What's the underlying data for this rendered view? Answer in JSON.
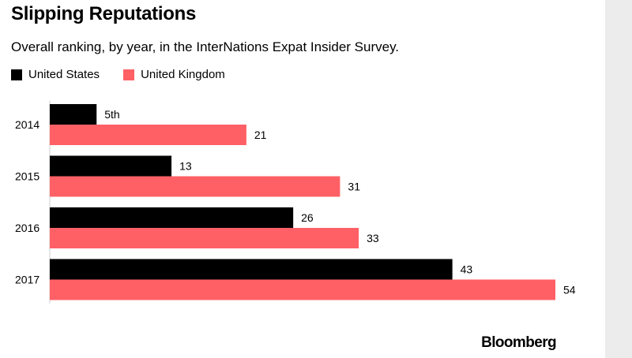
{
  "title": "Slipping Reputations",
  "subtitle": "Overall ranking, by year, in the InterNations Expat Insider Survey.",
  "brand": "Bloomberg",
  "colors": {
    "us": "#000000",
    "uk": "#ff6066"
  },
  "chart_data": {
    "type": "bar",
    "orientation": "horizontal",
    "categories": [
      "2014",
      "2015",
      "2016",
      "2017"
    ],
    "series": [
      {
        "name": "United States",
        "values": [
          5,
          13,
          26,
          43
        ],
        "labels": [
          "5th",
          "13",
          "26",
          "43"
        ]
      },
      {
        "name": "United Kingdom",
        "values": [
          21,
          31,
          33,
          54
        ],
        "labels": [
          "21",
          "31",
          "33",
          "54"
        ]
      }
    ],
    "xlim": [
      0,
      54
    ],
    "grid": false,
    "legend": "top-left"
  }
}
